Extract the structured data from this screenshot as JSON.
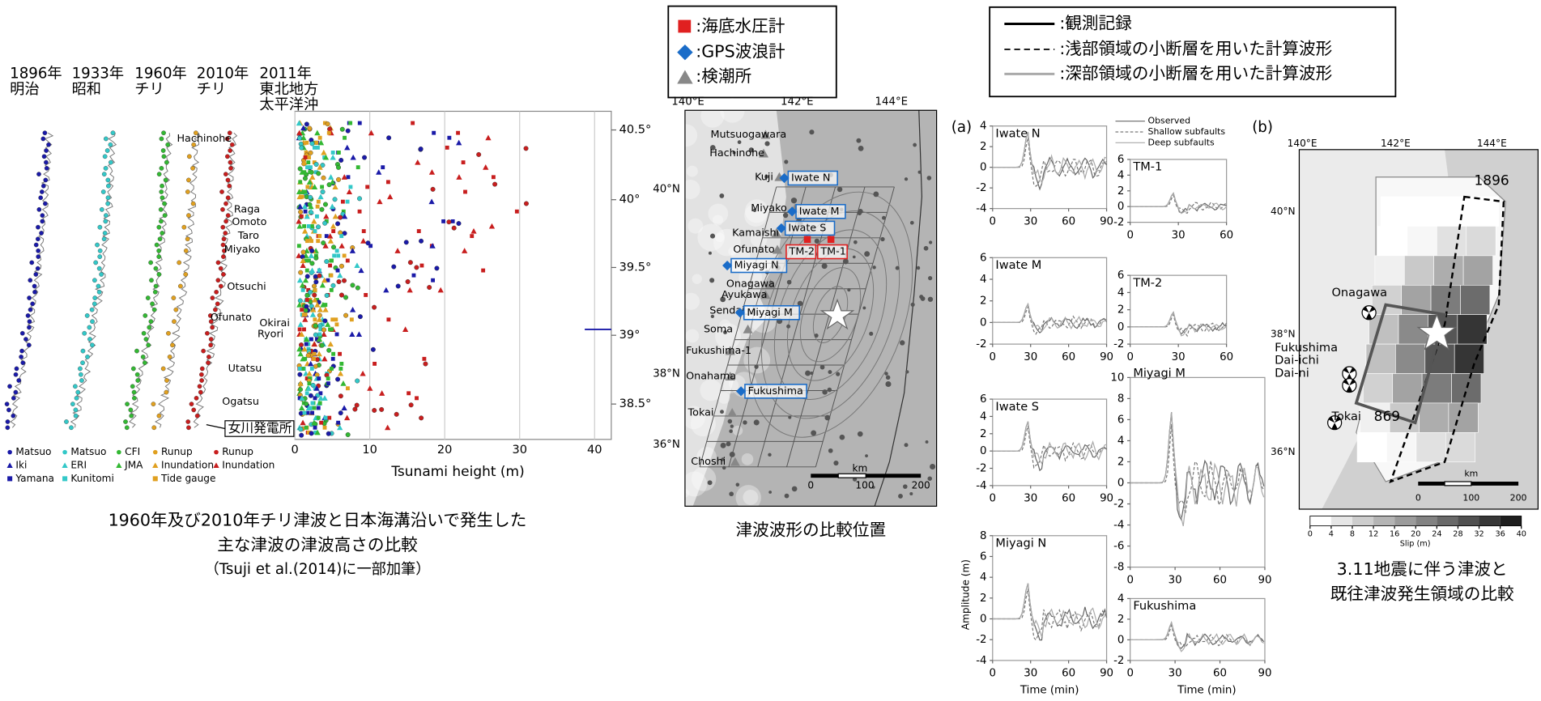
{
  "left_figure": {
    "eras": [
      [
        "1896年",
        "明治"
      ],
      [
        "1933年",
        "昭和"
      ],
      [
        "1960年",
        "チリ"
      ],
      [
        "2010年",
        "チリ"
      ],
      [
        "2011年",
        "東北地方",
        "太平洋沖"
      ]
    ],
    "places": [
      "Hachinohe",
      "Raga",
      "Omoto",
      "Taro",
      "Miyako",
      "Otsuchi",
      "Ofunato",
      "Okirai",
      "Ryori",
      "Utatsu",
      "Ogatsu"
    ],
    "plant": "女川発電所",
    "legend": [
      [
        "Matsuo",
        "Iki",
        "Yamana"
      ],
      [
        "Matsuo",
        "ERI",
        "Kunitomi"
      ],
      [
        "CFI",
        "JMA"
      ],
      [
        "Runup",
        "Inundation",
        "Tide gauge"
      ],
      [
        "Runup",
        "Inundation"
      ]
    ],
    "lat_ticks": [
      "40.5°",
      "40°",
      "39.5°",
      "39°",
      "38.5°"
    ],
    "x_ticks": [
      0,
      10,
      20,
      30,
      40
    ],
    "x_label": "Tsunami height (m)",
    "caption": [
      "1960年及び2010年チリ津波と日本海溝沿いで発生した",
      "主な津波の津波高さの比較",
      "（Tsuji et al.(2014)に一部加筆）"
    ]
  },
  "sensor_legend": [
    ":海底水圧計",
    ":GPS波浪計",
    ":検潮所"
  ],
  "line_legend": [
    ":観測記録",
    ":浅部領域の小断層を用いた計算波形",
    ":深部領域の小断層を用いた計算波形"
  ],
  "station_map": {
    "lon_ticks": [
      "140°E",
      "142°E",
      "144°E"
    ],
    "lat_ticks": [
      "40°N",
      "38°N",
      "36°N"
    ],
    "stations": [
      "Mutsuogawara",
      "Hachinohe",
      "Kuji",
      "Miyako",
      "Kamaishi",
      "Ofunato",
      "Onagawa",
      "Ayukawa",
      "Sendai",
      "Soma",
      "Fukushima-1",
      "Onahama",
      "Tokai",
      "Choshi"
    ],
    "gauges": [
      "Iwate N",
      "Iwate M",
      "Iwate S",
      "Miyagi N",
      "Miyagi M",
      "Fukushima",
      "TM-2",
      "TM-1"
    ],
    "scale_unit": "km",
    "scale_ticks": [
      0,
      100,
      200
    ],
    "caption": "津波波形の比較位置"
  },
  "waveforms": {
    "label": "(a)",
    "legend": [
      "Observed",
      "Shallow subfaults",
      "Deep subfaults"
    ],
    "y_label": "Amplitude (m)",
    "x_label": "Time (min)",
    "panels": [
      {
        "name": "Iwate N",
        "yticks": [
          4,
          2,
          0,
          -2,
          -4
        ],
        "xticks": [
          0,
          30,
          60,
          90
        ]
      },
      {
        "name": "TM-1",
        "yticks": [
          6,
          4,
          2,
          0,
          -2
        ],
        "xticks": [
          0,
          30,
          60
        ]
      },
      {
        "name": "Iwate M",
        "yticks": [
          6,
          4,
          2,
          0,
          -2
        ],
        "xticks": [
          0,
          30,
          60,
          90
        ]
      },
      {
        "name": "TM-2",
        "yticks": [
          6,
          4,
          2,
          0,
          -2
        ],
        "xticks": [
          0,
          30,
          60
        ]
      },
      {
        "name": "Iwate S",
        "yticks": [
          6,
          4,
          2,
          0,
          -2,
          -4
        ],
        "xticks": [
          0,
          30,
          60,
          90
        ]
      },
      {
        "name": "Miyagi M",
        "yticks": [
          10,
          8,
          6,
          4,
          2,
          0,
          -2,
          -4,
          -6,
          -8
        ],
        "xticks": [
          0,
          30,
          60,
          90
        ]
      },
      {
        "name": "Miyagi N",
        "yticks": [
          8,
          6,
          4,
          2,
          0,
          -2,
          -4
        ],
        "xticks": [
          0,
          30,
          60,
          90
        ]
      },
      {
        "name": "Fukushima",
        "yticks": [
          4,
          2,
          0,
          -2
        ],
        "xticks": [
          0,
          30,
          60,
          90
        ]
      }
    ]
  },
  "slip_map": {
    "label": "(b)",
    "lon_ticks": [
      "140°E",
      "142°E",
      "144°E"
    ],
    "lat_ticks": [
      "40°N",
      "38°N",
      "36°N"
    ],
    "labels": [
      "1896",
      "Onagawa",
      "Fukushima",
      "Dai-ichi",
      "Dai-ni",
      "Tokai",
      "869"
    ],
    "scale_unit": "km",
    "scale_ticks": [
      0,
      100,
      200
    ],
    "colorbar_ticks": [
      0,
      4,
      8,
      12,
      16,
      20,
      24,
      28,
      32,
      36,
      40
    ],
    "colorbar_label": "Slip (m)",
    "caption": [
      "3.11地震に伴う津波と",
      "既往津波発生領域の比較"
    ]
  }
}
